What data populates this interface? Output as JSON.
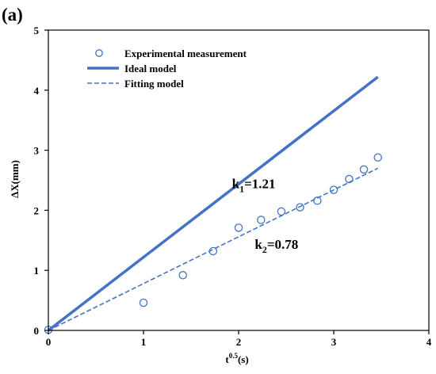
{
  "panel_label": "(a)",
  "colors": {
    "series": "#4472C4",
    "axis": "#000000",
    "background": "#ffffff"
  },
  "chart_data": {
    "type": "scatter",
    "title": "",
    "xlabel": "t^0.5(s)",
    "xlabel_base": "t",
    "xlabel_sup": "0.5",
    "xlabel_rest": "(s)",
    "ylabel": "ΔX(mm)",
    "xlim": [
      0,
      4
    ],
    "ylim": [
      0,
      5
    ],
    "xticks": [
      0,
      1,
      2,
      3,
      4
    ],
    "yticks": [
      0,
      1,
      2,
      3,
      4,
      5
    ],
    "grid": false,
    "legend_position": "top-left",
    "series": [
      {
        "name": "Experimental measurement",
        "kind": "markers",
        "marker": "open-circle",
        "x": [
          0,
          1,
          1.414,
          1.732,
          2,
          2.236,
          2.449,
          2.646,
          2.828,
          3,
          3.162,
          3.317,
          3.464
        ],
        "y": [
          0.01,
          0.46,
          0.92,
          1.32,
          1.71,
          1.84,
          1.98,
          2.05,
          2.16,
          2.34,
          2.52,
          2.68,
          2.88
        ]
      },
      {
        "name": "Ideal model",
        "kind": "line",
        "line_style": "solid",
        "slope": 1.21,
        "x": [
          0,
          3.464
        ],
        "y": [
          0,
          4.22
        ]
      },
      {
        "name": "Fitting model",
        "kind": "line",
        "line_style": "dashed",
        "slope": 0.78,
        "x": [
          0,
          3.464
        ],
        "y": [
          0,
          2.7
        ]
      }
    ],
    "annotations": [
      {
        "base": "k",
        "sub": "1",
        "text": "=1.21",
        "x": 1.93,
        "y": 2.37
      },
      {
        "base": "k",
        "sub": "2",
        "text": "=0.78",
        "x": 2.17,
        "y": 1.36
      }
    ]
  }
}
